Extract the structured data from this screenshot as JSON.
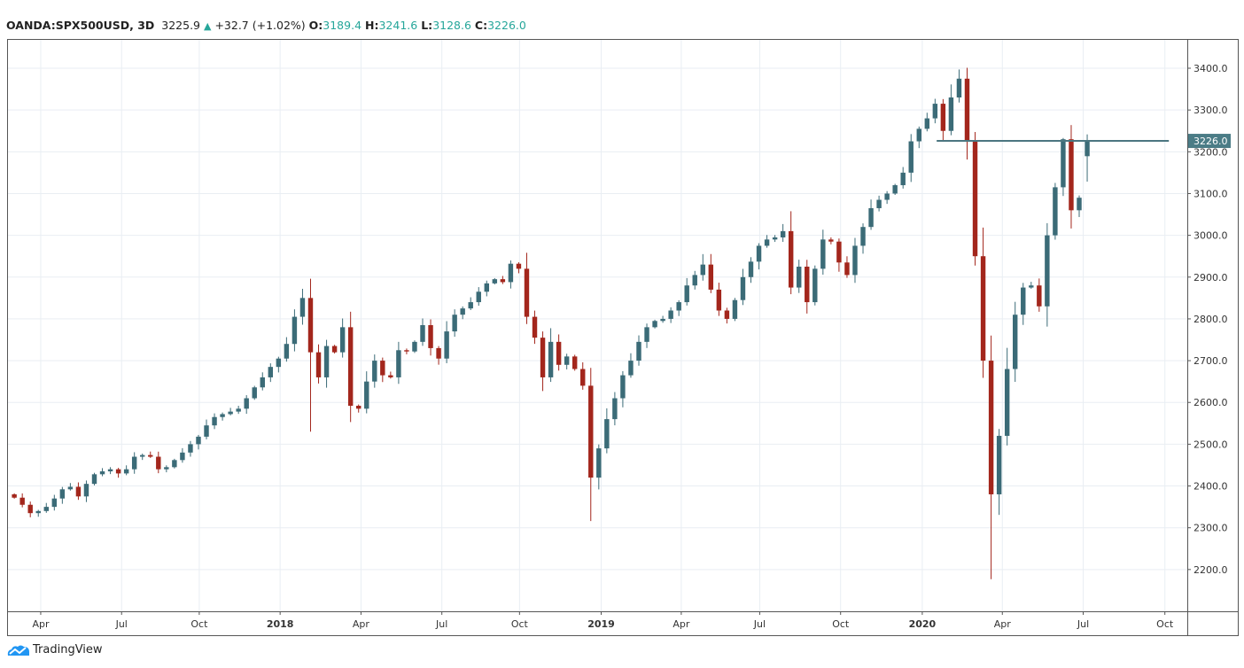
{
  "header": {
    "symbol": "OANDA:SPX500USD, 3D",
    "last": "3225.9",
    "change": "+32.7 (+1.02%)",
    "o_label": "O:",
    "o": "3189.4",
    "h_label": "H:",
    "h": "3241.6",
    "l_label": "L:",
    "l": "3128.6",
    "c_label": "C:",
    "c": "3226.0",
    "up_arrow": "▲"
  },
  "branding": {
    "name": "TradingView",
    "icon": "tradingview-cloud-icon"
  },
  "colors": {
    "up": "#3b6b77",
    "down": "#a3261c",
    "grid": "#e9eef3",
    "line": "#4b7680",
    "label_bg": "#4b7c86",
    "header_value": "#26a69a"
  },
  "chart_data": {
    "type": "candlestick",
    "title": "OANDA:SPX500USD, 3D",
    "ylim": [
      2100,
      3470
    ],
    "yticks": [
      "2200.0",
      "2300.0",
      "2400.0",
      "2500.0",
      "2600.0",
      "2700.0",
      "2800.0",
      "2900.0",
      "3000.0",
      "3100.0",
      "3200.0",
      "3300.0",
      "3400.0"
    ],
    "xticks": [
      {
        "label": "Apr",
        "i": 3.3,
        "bold": false
      },
      {
        "label": "Jul",
        "i": 13.4,
        "bold": false
      },
      {
        "label": "Oct",
        "i": 23.1,
        "bold": false
      },
      {
        "label": "2018",
        "i": 33.2,
        "bold": true
      },
      {
        "label": "Apr",
        "i": 43.3,
        "bold": false
      },
      {
        "label": "Jul",
        "i": 53.4,
        "bold": false
      },
      {
        "label": "Oct",
        "i": 63.1,
        "bold": false
      },
      {
        "label": "2019",
        "i": 73.3,
        "bold": true
      },
      {
        "label": "Apr",
        "i": 83.3,
        "bold": false
      },
      {
        "label": "Jul",
        "i": 93.1,
        "bold": false
      },
      {
        "label": "Oct",
        "i": 103.2,
        "bold": false
      },
      {
        "label": "2020",
        "i": 113.4,
        "bold": true
      },
      {
        "label": "Apr",
        "i": 123.4,
        "bold": false
      },
      {
        "label": "Jul",
        "i": 133.5,
        "bold": false
      },
      {
        "label": "Oct",
        "i": 143.7,
        "bold": false
      }
    ],
    "xlim_index": [
      -0.9,
      146.5
    ],
    "first_open": 2380,
    "closes": [
      2372,
      2355,
      2335,
      2340,
      2350,
      2370,
      2392,
      2398,
      2375,
      2405,
      2428,
      2435,
      2440,
      2430,
      2440,
      2470,
      2474,
      2470,
      2440,
      2445,
      2462,
      2480,
      2500,
      2518,
      2545,
      2565,
      2572,
      2578,
      2585,
      2610,
      2636,
      2660,
      2685,
      2705,
      2740,
      2805,
      2850,
      2720,
      2660,
      2735,
      2720,
      2780,
      2592,
      2585,
      2650,
      2700,
      2665,
      2660,
      2725,
      2722,
      2745,
      2785,
      2730,
      2705,
      2770,
      2810,
      2825,
      2840,
      2865,
      2885,
      2895,
      2888,
      2932,
      2920,
      2805,
      2755,
      2660,
      2745,
      2690,
      2710,
      2680,
      2640,
      2420,
      2490,
      2560,
      2610,
      2665,
      2700,
      2745,
      2780,
      2795,
      2800,
      2820,
      2840,
      2880,
      2905,
      2930,
      2870,
      2820,
      2800,
      2845,
      2900,
      2937,
      2975,
      2990,
      2995,
      3010,
      2875,
      2925,
      2840,
      2920,
      2990,
      2985,
      2935,
      2905,
      2975,
      3020,
      3065,
      3085,
      3100,
      3120,
      3150,
      3225,
      3255,
      3280,
      3315,
      3250,
      3330,
      3375,
      3225,
      2950,
      2700,
      2380,
      2520,
      2680,
      2810,
      2875,
      2880,
      2830,
      3000,
      3115,
      3230,
      3060,
      3090,
      3226
    ],
    "notable_extremes": [
      {
        "i": 36,
        "high": 2872
      },
      {
        "i": 37,
        "low": 2530
      },
      {
        "i": 42,
        "low": 2553
      },
      {
        "i": 62,
        "high": 2940
      },
      {
        "i": 72,
        "low": 2316
      },
      {
        "i": 86,
        "high": 2955
      },
      {
        "i": 96,
        "high": 3027
      },
      {
        "i": 118,
        "high": 3397
      },
      {
        "i": 122,
        "low": 2177
      },
      {
        "i": 131,
        "high": 3233
      },
      {
        "i": 134,
        "high": 3241.6,
        "low": 3128.6,
        "open": 3189.4
      }
    ],
    "hline": {
      "value": 3226.0,
      "label": "3226.0",
      "from_i": 115.2,
      "to_i": 144.2
    }
  }
}
